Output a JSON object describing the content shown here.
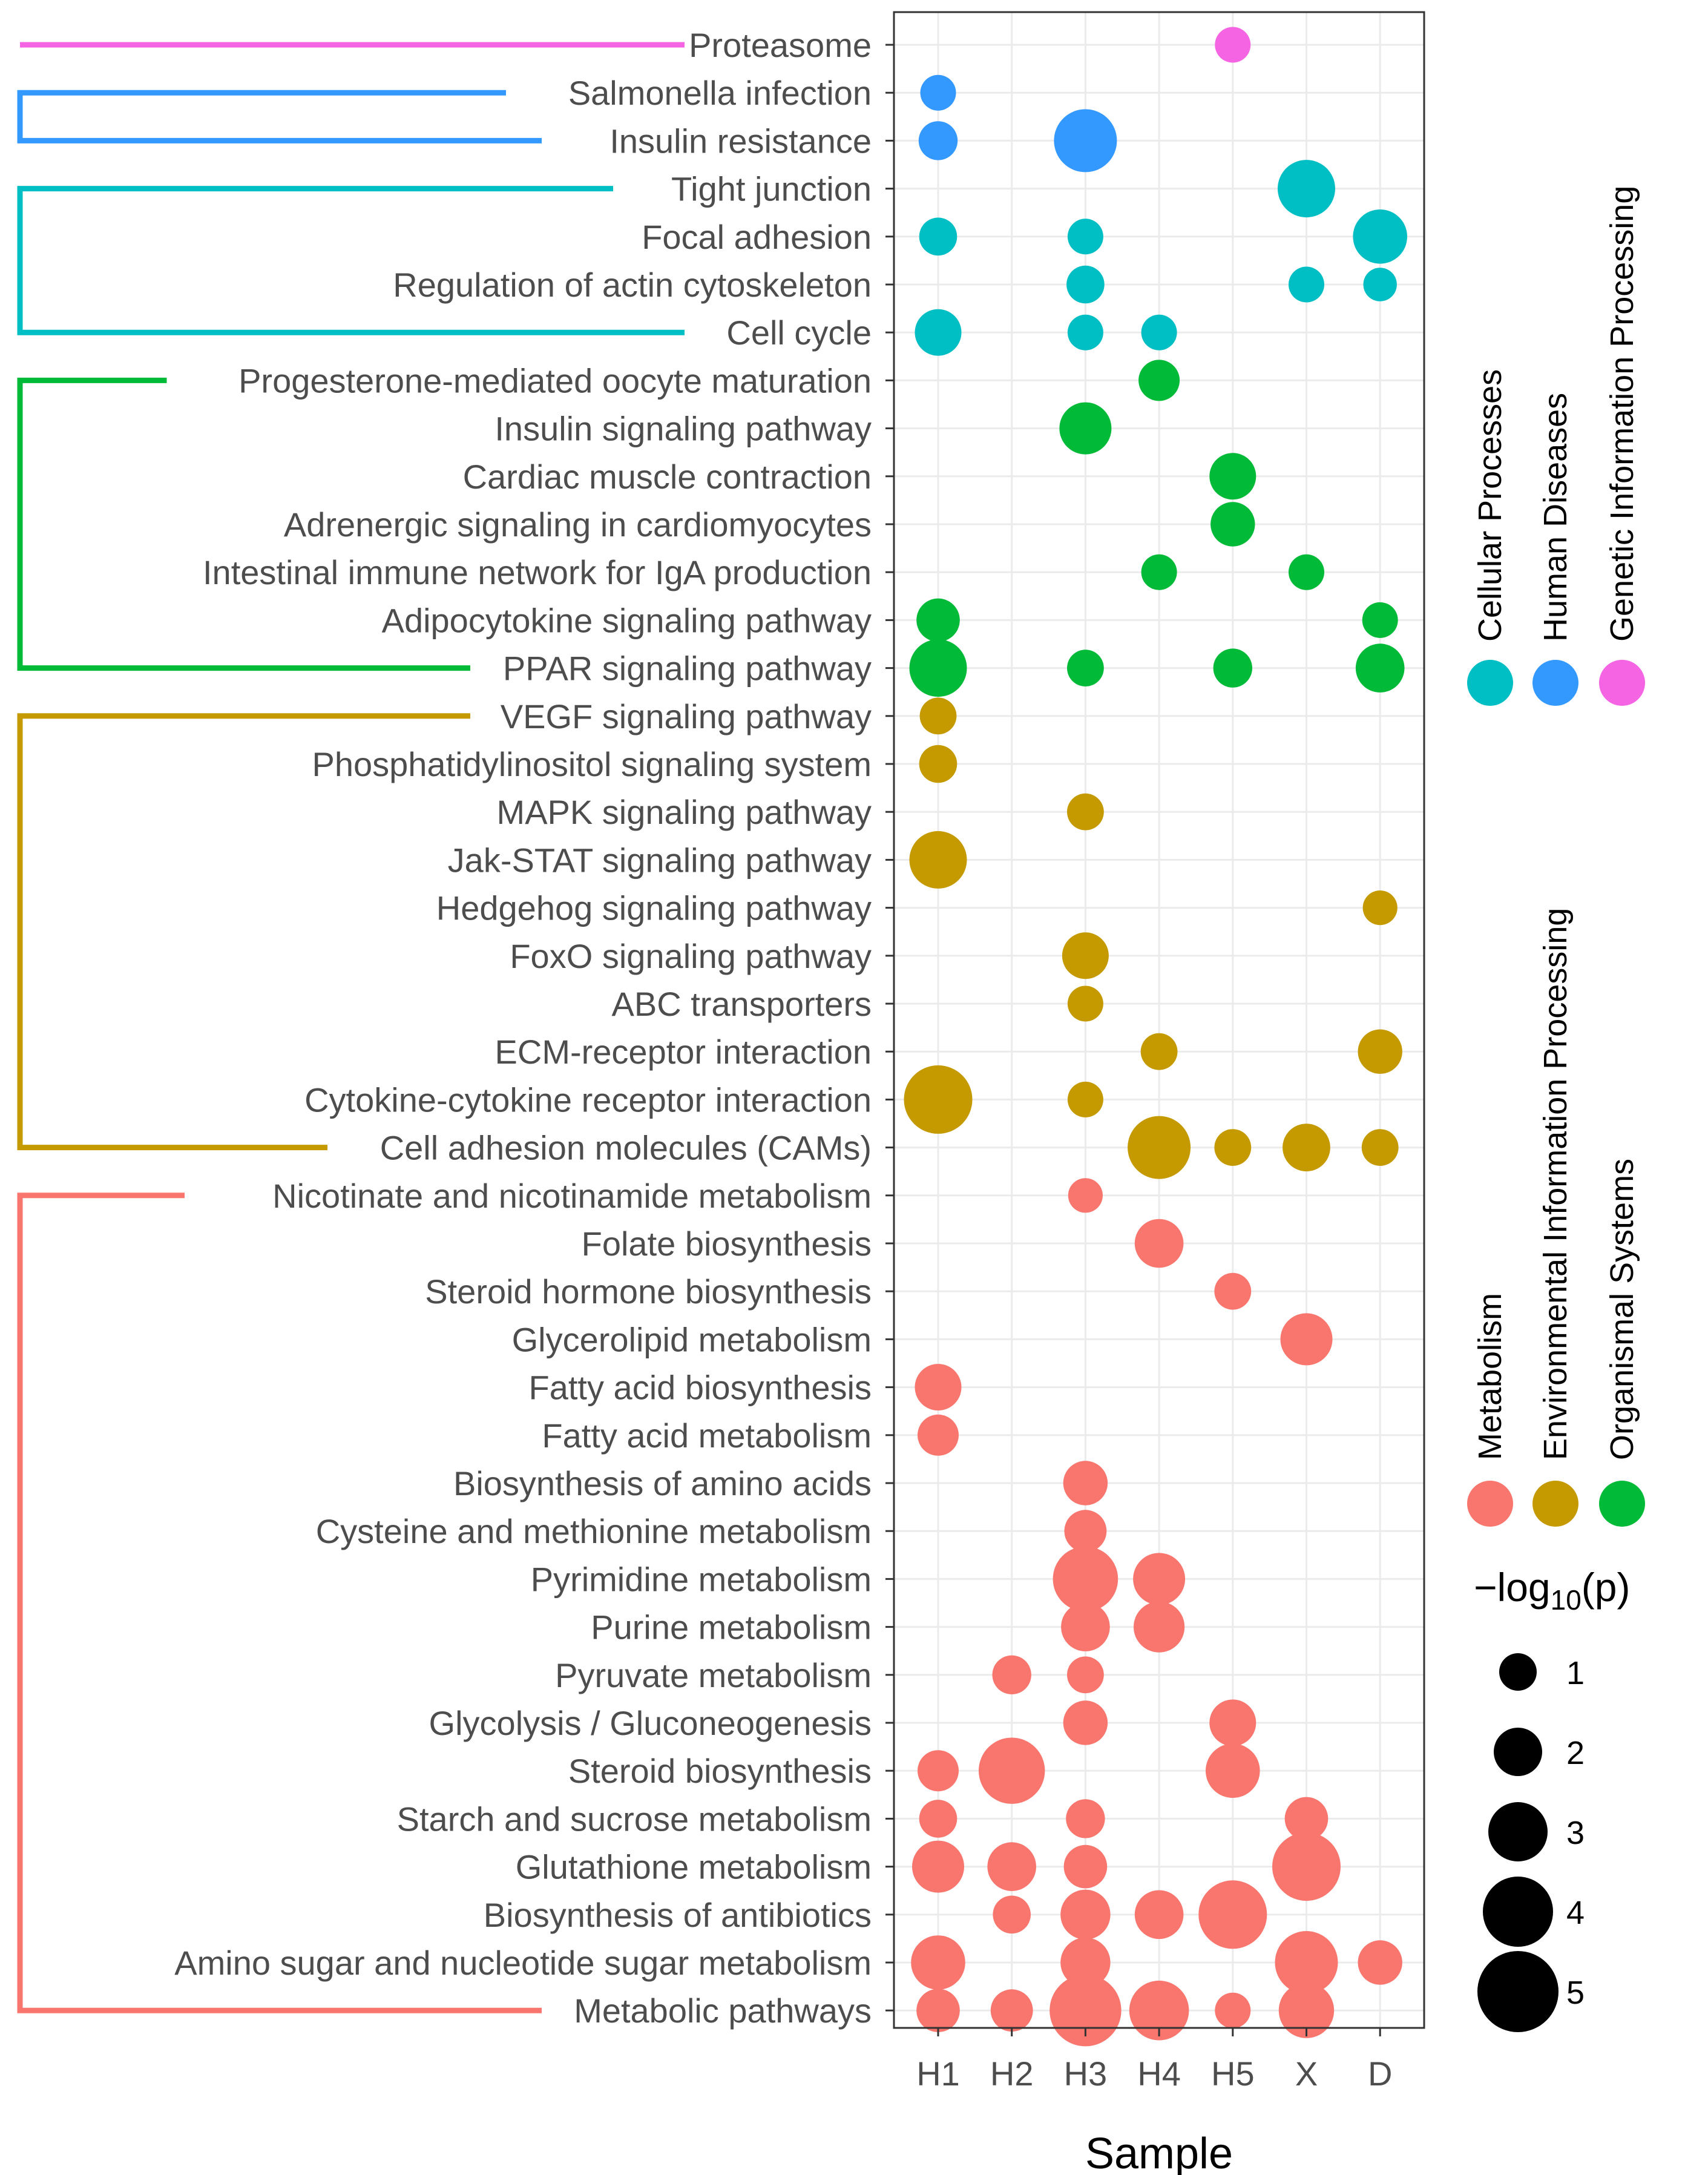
{
  "chart_data": {
    "type": "scatter",
    "subtype": "bubble",
    "xlabel": "Sample",
    "x_categories": [
      "H1",
      "H2",
      "H3",
      "H4",
      "H5",
      "X",
      "D"
    ],
    "size_legend": {
      "title_prefix": "−log",
      "title_subscript": "10",
      "title_suffix": "(p)",
      "values": [
        1,
        2,
        3,
        4,
        5
      ]
    },
    "colors": {
      "Metabolism": "#F8766D",
      "Environmental Information Processing": "#C49A00",
      "Organismal Systems": "#00BA38",
      "Cellular Processes": "#00BFC4",
      "Human Diseases": "#3399FF",
      "Genetic Information Processing": "#F564E3"
    },
    "legend_groups": [
      [
        "Cellular Processes",
        "Human  Diseases",
        "Genetic Information Processing"
      ],
      [
        "Metabolism",
        "Environmental Information Processing",
        "Organismal Systems"
      ]
    ],
    "legend_keys": [
      [
        "Cellular Processes",
        "Human Diseases",
        "Genetic Information Processing"
      ],
      [
        "Metabolism",
        "Environmental Information Processing",
        "Organismal Systems"
      ]
    ],
    "pathways": [
      {
        "name": "Proteasome",
        "category": "Genetic Information Processing",
        "values": {
          "H5": 1.5
        }
      },
      {
        "name": "Salmonella infection",
        "category": "Human Diseases",
        "values": {
          "H1": 1.5
        }
      },
      {
        "name": "Insulin resistance",
        "category": "Human Diseases",
        "values": {
          "H1": 1.8,
          "H3": 4
        }
      },
      {
        "name": "Tight junction",
        "category": "Cellular Processes",
        "values": {
          "X": 3.5
        }
      },
      {
        "name": "Focal adhesion",
        "category": "Cellular Processes",
        "values": {
          "H1": 1.7,
          "H3": 1.5,
          "D": 3.2
        }
      },
      {
        "name": "Regulation of actin cytoskeleton",
        "category": "Cellular Processes",
        "values": {
          "H3": 1.7,
          "X": 1.5,
          "D": 1.3
        }
      },
      {
        "name": "Cell cycle",
        "category": "Cellular Processes",
        "values": {
          "H1": 2.5,
          "H3": 1.5,
          "H4": 1.5
        }
      },
      {
        "name": "Progesterone-mediated oocyte maturation",
        "category": "Organismal Systems",
        "values": {
          "H4": 2
        }
      },
      {
        "name": "Insulin signaling pathway",
        "category": "Organismal Systems",
        "values": {
          "H3": 3
        }
      },
      {
        "name": "Cardiac muscle contraction",
        "category": "Organismal Systems",
        "values": {
          "H5": 2.5
        }
      },
      {
        "name": "Adrenergic signaling in cardiomyocytes",
        "category": "Organismal Systems",
        "values": {
          "H5": 2.3
        }
      },
      {
        "name": "Intestinal immune network for IgA production",
        "category": "Organismal Systems",
        "values": {
          "H4": 1.5,
          "X": 1.5
        }
      },
      {
        "name": "Adipocytokine signaling pathway",
        "category": "Organismal Systems",
        "values": {
          "H1": 2.2,
          "D": 1.5
        }
      },
      {
        "name": "PPAR signaling pathway",
        "category": "Organismal Systems",
        "values": {
          "H1": 3.5,
          "H3": 1.6,
          "H5": 1.8,
          "D": 2.7
        }
      },
      {
        "name": "VEGF signaling pathway",
        "category": "Environmental Information Processing",
        "values": {
          "H1": 1.6
        }
      },
      {
        "name": "Phosphatidylinositol signaling system",
        "category": "Environmental Information Processing",
        "values": {
          "H1": 1.7
        }
      },
      {
        "name": "MAPK signaling pathway",
        "category": "Environmental Information Processing",
        "values": {
          "H3": 1.6
        }
      },
      {
        "name": "Jak-STAT signaling pathway",
        "category": "Environmental Information Processing",
        "values": {
          "H1": 3.5
        }
      },
      {
        "name": "Hedgehog signaling pathway",
        "category": "Environmental Information Processing",
        "values": {
          "D": 1.4
        }
      },
      {
        "name": "FoxO signaling pathway",
        "category": "Environmental Information Processing",
        "values": {
          "H3": 2.5
        }
      },
      {
        "name": "ABC transporters",
        "category": "Environmental Information Processing",
        "values": {
          "H3": 1.5
        }
      },
      {
        "name": "ECM-receptor interaction",
        "category": "Environmental Information Processing",
        "values": {
          "H4": 1.6,
          "D": 2.3
        }
      },
      {
        "name": "Cytokine-cytokine receptor interaction",
        "category": "Environmental Information Processing",
        "values": {
          "H1": 4.5,
          "H3": 1.5
        }
      },
      {
        "name": "Cell adhesion molecules (CAMs)",
        "category": "Environmental Information Processing",
        "values": {
          "H4": 4,
          "H5": 1.6,
          "X": 2.6,
          "D": 1.6
        }
      },
      {
        "name": "Nicotinate and nicotinamide metabolism",
        "category": "Metabolism",
        "values": {
          "H3": 1.4
        }
      },
      {
        "name": "Folate biosynthesis",
        "category": "Metabolism",
        "values": {
          "H4": 2.7
        }
      },
      {
        "name": "Steroid hormone biosynthesis",
        "category": "Metabolism",
        "values": {
          "H5": 1.6
        }
      },
      {
        "name": "Glycerolipid metabolism",
        "category": "Metabolism",
        "values": {
          "X": 3
        }
      },
      {
        "name": "Fatty acid biosynthesis",
        "category": "Metabolism",
        "values": {
          "H1": 2.5
        }
      },
      {
        "name": "Fatty acid metabolism",
        "category": "Metabolism",
        "values": {
          "H1": 2
        }
      },
      {
        "name": "Biosynthesis of amino acids",
        "category": "Metabolism",
        "values": {
          "H3": 2.3
        }
      },
      {
        "name": "Cysteine and methionine metabolism",
        "category": "Metabolism",
        "values": {
          "H3": 2.1
        }
      },
      {
        "name": "Pyrimidine metabolism",
        "category": "Metabolism",
        "values": {
          "H3": 4.2,
          "H4": 3
        }
      },
      {
        "name": "Purine metabolism",
        "category": "Metabolism",
        "values": {
          "H3": 2.7,
          "H4": 2.9
        }
      },
      {
        "name": "Pyruvate metabolism",
        "category": "Metabolism",
        "values": {
          "H2": 1.8,
          "H3": 1.6
        }
      },
      {
        "name": "Glycolysis / Gluconeogenesis",
        "category": "Metabolism",
        "values": {
          "H3": 2.3,
          "H5": 2.5
        }
      },
      {
        "name": "Steroid biosynthesis",
        "category": "Metabolism",
        "values": {
          "H1": 2,
          "H2": 4.3,
          "H5": 3.2
        }
      },
      {
        "name": "Starch and sucrose metabolism",
        "category": "Metabolism",
        "values": {
          "H1": 1.7,
          "H3": 1.8,
          "X": 2.2
        }
      },
      {
        "name": "Glutathione metabolism",
        "category": "Metabolism",
        "values": {
          "H1": 3,
          "H2": 2.7,
          "H3": 2.2,
          "X": 4.5
        }
      },
      {
        "name": "Biosynthesis of antibiotics",
        "category": "Metabolism",
        "values": {
          "H2": 1.7,
          "H3": 2.8,
          "H4": 2.7,
          "H5": 4.5
        }
      },
      {
        "name": "Amino sugar and nucleotide sugar metabolism",
        "category": "Metabolism",
        "values": {
          "H1": 3.2,
          "H3": 2.8,
          "X": 4,
          "D": 2.3
        }
      },
      {
        "name": "Metabolic pathways",
        "category": "Metabolism",
        "values": {
          "H1": 2.2,
          "H2": 2.1,
          "H3": 4.8,
          "H4": 3.7,
          "H5": 1.5,
          "X": 3.3
        }
      }
    ],
    "brackets": [
      {
        "category": "Genetic Information Processing",
        "from": 0,
        "to": 0
      },
      {
        "category": "Human Diseases",
        "from": 1,
        "to": 2
      },
      {
        "category": "Cellular Processes",
        "from": 3,
        "to": 6
      },
      {
        "category": "Organismal Systems",
        "from": 7,
        "to": 13
      },
      {
        "category": "Environmental Information Processing",
        "from": 14,
        "to": 23
      },
      {
        "category": "Metabolism",
        "from": 24,
        "to": 41
      }
    ]
  }
}
